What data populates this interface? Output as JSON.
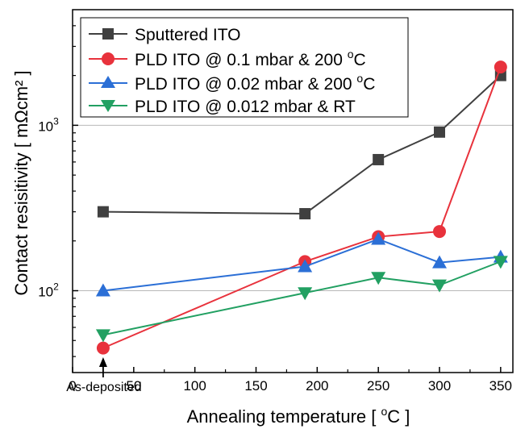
{
  "chart_data": {
    "type": "line",
    "xlabel_main": "Annealing temperature [ ",
    "xlabel_sup": "o",
    "xlabel_end": "C ]",
    "ylabel": "Contact resisitivity [ mΩcm² ]",
    "xlim": [
      0,
      360
    ],
    "ylim": [
      32,
      5000
    ],
    "yscale": "log",
    "grid": "horizontal-major",
    "legend_position": "top-left",
    "x_ticks": [
      0,
      50,
      100,
      150,
      200,
      250,
      300,
      350
    ],
    "x_tick_labels": [
      "0",
      "50",
      "100",
      "150",
      "200",
      "250",
      "300",
      "350"
    ],
    "y_major_ticks": [
      100,
      1000
    ],
    "y_tick_base": "10",
    "y_tick_exponents": [
      "2",
      "3"
    ],
    "annotation": "As-deposited",
    "annotation_x": 25,
    "series": [
      {
        "name": "Sputtered ITO",
        "color": "#404040",
        "marker": "square",
        "x": [
          25,
          190,
          250,
          300,
          350
        ],
        "y": [
          300,
          292,
          620,
          910,
          2000
        ]
      },
      {
        "name": "PLD ITO @ 0.1 mbar & 200 ",
        "name_sup": "o",
        "name_end": "C",
        "color": "#e8323c",
        "marker": "circle",
        "x": [
          25,
          190,
          250,
          300,
          350
        ],
        "y": [
          45,
          150,
          212,
          228,
          2250
        ]
      },
      {
        "name": "PLD ITO @ 0.02 mbar & 200 ",
        "name_sup": "o",
        "name_end": "C",
        "color": "#2b6fd6",
        "marker": "triangle-up",
        "x": [
          25,
          190,
          250,
          300,
          350
        ],
        "y": [
          100,
          140,
          205,
          148,
          160
        ]
      },
      {
        "name": "PLD ITO @ 0.012 mbar & RT",
        "color": "#22a062",
        "marker": "triangle-down",
        "x": [
          25,
          190,
          250,
          300,
          350
        ],
        "y": [
          54,
          97,
          120,
          108,
          150
        ]
      }
    ]
  }
}
